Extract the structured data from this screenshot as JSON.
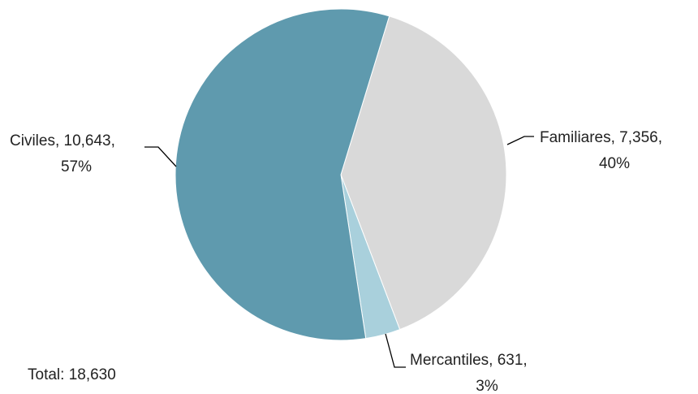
{
  "chart_data": {
    "type": "pie",
    "slices": [
      {
        "category": "Familiares",
        "value": 7356,
        "percent": "40%",
        "label": "Familiares, 7,356,",
        "pct_label": "40%",
        "color": "#d9d9d9"
      },
      {
        "category": "Mercantiles",
        "value": 631,
        "percent": "3%",
        "label": "Mercantiles, 631,",
        "pct_label": "3%",
        "color": "#a9d0dc"
      },
      {
        "category": "Civiles",
        "value": 10643,
        "percent": "57%",
        "label": "Civiles, 10,643,",
        "pct_label": "57%",
        "color": "#5f9aae"
      }
    ],
    "total": 18630,
    "total_label": "Total: 18,630",
    "start_angle_deg": 17,
    "direction": "clockwise",
    "legend": "none",
    "data_labels": "outside-with-leader-lines"
  }
}
